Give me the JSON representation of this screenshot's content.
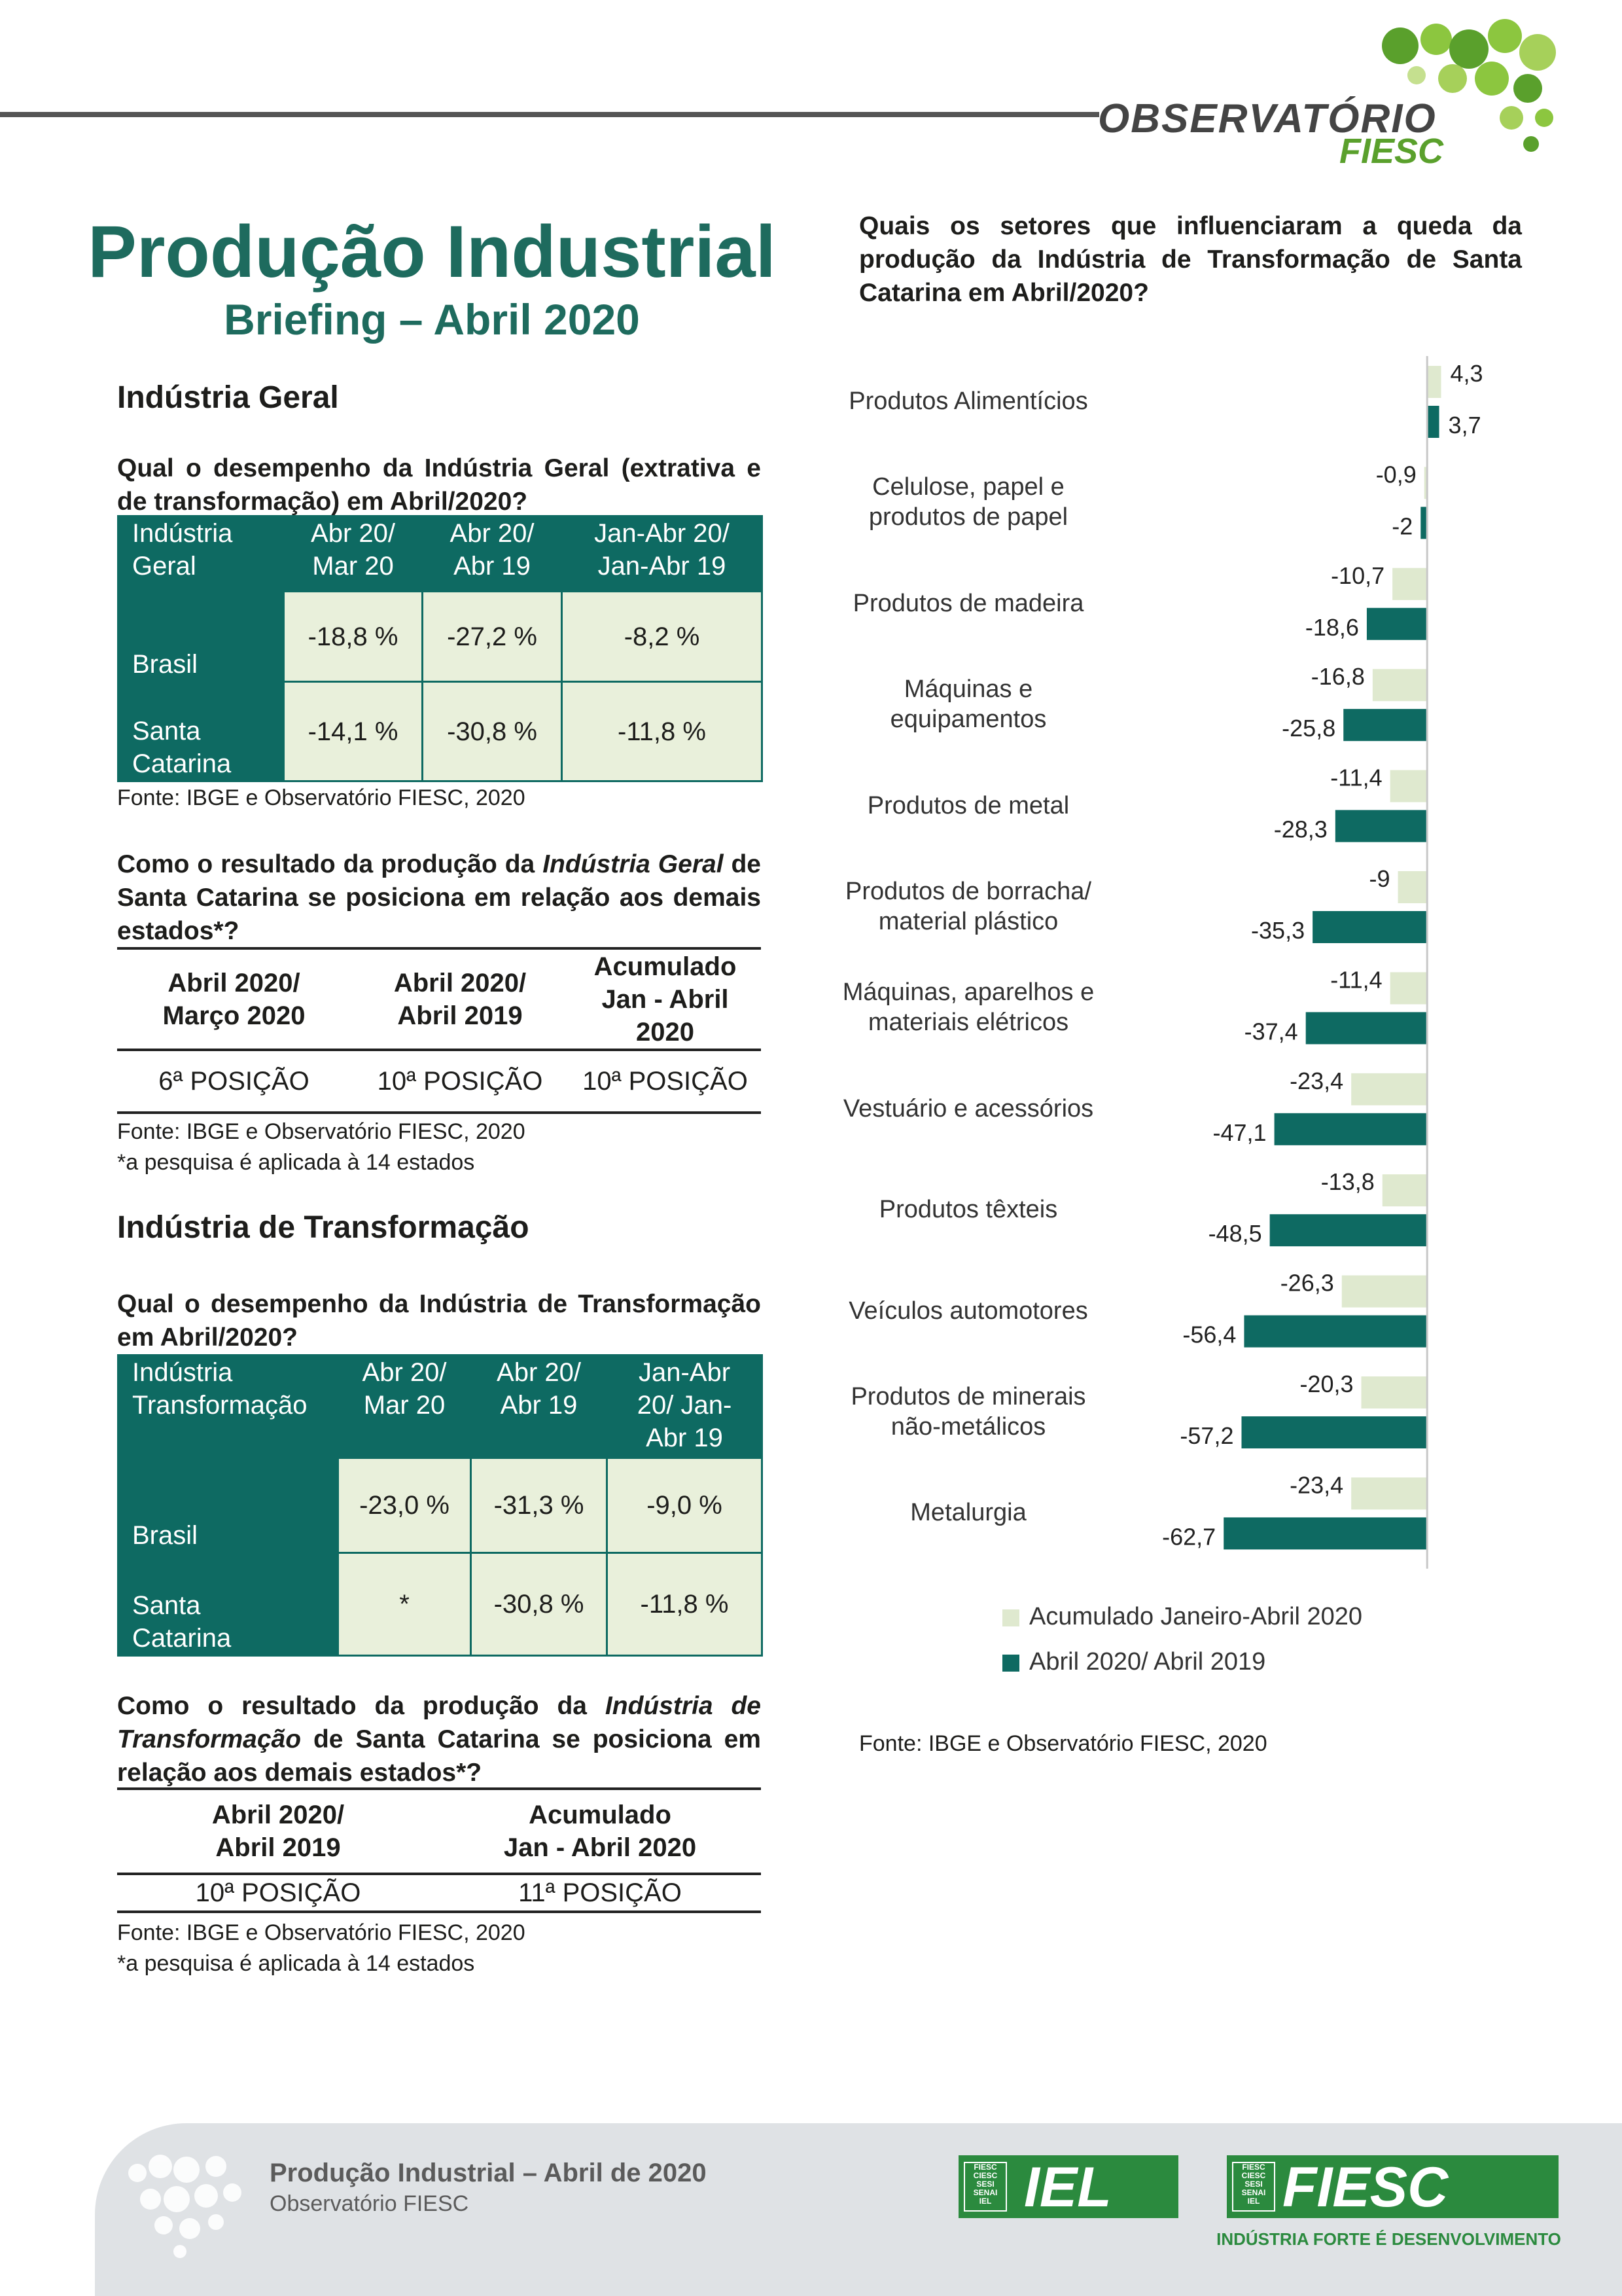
{
  "header": {
    "brand_top": "OBSERVATÓRIO",
    "brand_bottom": "FIESC"
  },
  "title": "Produção Industrial",
  "subtitle": "Briefing – Abril 2020",
  "section1": {
    "heading": "Indústria Geral",
    "question1": "Qual o desempenho da Indústria Geral (extrativa e de transformação) em Abril/2020?",
    "table1": {
      "header": [
        "Indústria\nGeral",
        "Abr 20/\nMar 20",
        "Abr 20/\nAbr 19",
        "Jan-Abr 20/\nJan-Abr 19"
      ],
      "rows": [
        [
          "Brasil",
          "-18,8 %",
          "-27,2 %",
          "-8,2 %"
        ],
        [
          "Santa\nCatarina",
          "-14,1  %",
          "-30,8 %",
          "-11,8 %"
        ]
      ]
    },
    "source1": "Fonte: IBGE e Observatório FIESC, 2020",
    "question2": [
      "Como o resultado da produção da ",
      "Indústria Geral",
      " de Santa Catarina se posiciona em relação aos demais estados*?"
    ],
    "table2": {
      "header": [
        "Abril 2020/\nMarço 2020",
        "Abril 2020/\nAbril 2019",
        "Acumulado\nJan - Abril\n2020"
      ],
      "rows": [
        [
          "6ª  POSIÇÃO",
          "10ª POSIÇÃO",
          "10ª POSIÇÃO"
        ]
      ]
    },
    "source2": "Fonte: IBGE e Observatório FIESC, 2020",
    "note2": "*a pesquisa é aplicada à 14 estados"
  },
  "section2": {
    "heading": "Indústria de Transformação",
    "question3": "Qual o desempenho da Indústria de Transformação em Abril/2020?",
    "table3": {
      "header": [
        "Indústria\nTransformação",
        "Abr 20/\nMar 20",
        "Abr 20/\nAbr 19",
        "Jan-Abr\n20/ Jan-\nAbr 19"
      ],
      "rows": [
        [
          "Brasil",
          "-23,0 %",
          "-31,3 %",
          "-9,0 %"
        ],
        [
          "Santa\nCatarina",
          "*",
          "-30,8 %",
          "-11,8 %"
        ]
      ]
    },
    "question4": [
      "Como o resultado da produção da ",
      "Indústria de Transformação",
      " de Santa Catarina se posiciona em relação aos demais estados*?"
    ],
    "table4": {
      "header": [
        "Abril 2020/\nAbril 2019",
        "Acumulado\nJan - Abril 2020"
      ],
      "rows": [
        [
          "10ª POSIÇÃO",
          "11ª POSIÇÃO"
        ]
      ]
    },
    "source4": "Fonte: IBGE e Observatório FIESC, 2020",
    "note4": "*a pesquisa é aplicada à 14 estados"
  },
  "chart_data": {
    "type": "bar",
    "orientation": "horizontal",
    "title": "Quais os setores que influenciaram a queda da produção da Indústria de Transformação de Santa Catarina em Abril/2020?",
    "categories": [
      "Produtos Alimentícios",
      "Celulose, papel e\nprodutos de papel",
      "Produtos de madeira",
      "Máquinas e\nequipamentos",
      "Produtos de metal",
      "Produtos de borracha/\nmaterial plástico",
      "Máquinas, aparelhos e\nmateriais elétricos",
      "Vestuário e acessórios",
      "Produtos têxteis",
      "Veículos automotores",
      "Produtos de minerais\nnão-metálicos",
      "Metalurgia"
    ],
    "series": [
      {
        "name": "Acumulado Janeiro-Abril 2020",
        "color": "#dfe9cf",
        "values": [
          4.3,
          -0.9,
          -10.7,
          -16.8,
          -11.4,
          -9,
          -11.4,
          -23.4,
          -13.8,
          -26.3,
          -20.3,
          -23.4
        ],
        "value_labels": [
          "4,3",
          "-0,9",
          "-10,7",
          "-16,8",
          "-11,4",
          "-9",
          "-11,4",
          "-23,4",
          "-13,8",
          "-26,3",
          "-20,3",
          "-23,4"
        ]
      },
      {
        "name": "Abril 2020/ Abril 2019",
        "color": "#0e6a62",
        "values": [
          3.7,
          -2,
          -18.6,
          -25.8,
          -28.3,
          -35.3,
          -37.4,
          -47.1,
          -48.5,
          -56.4,
          -57.2,
          -62.7
        ],
        "value_labels": [
          "3,7",
          "-2",
          "-18,6",
          "-25,8",
          "-28,3",
          "-35,3",
          "-37,4",
          "-47,1",
          "-48,5",
          "-56,4",
          "-57,2",
          "-62,7"
        ]
      }
    ],
    "xlim": [
      -70,
      5
    ],
    "legend": "bottom",
    "source": "Fonte: IBGE e Observatório FIESC, 2020"
  },
  "footer": {
    "title": "Produção Industrial – Abril de 2020",
    "subtitle": "Observatório FIESC",
    "iel_box": "FIESC\nCIESC\nSESI\nSENAI\nIEL",
    "iel": "IEL",
    "fiesc_box": "FIESC\nCIESC\nSESI\nSENAI\nIEL",
    "fiesc": "FIESC",
    "tagline": "INDÚSTRIA FORTE É DESENVOLVIMENTO"
  }
}
